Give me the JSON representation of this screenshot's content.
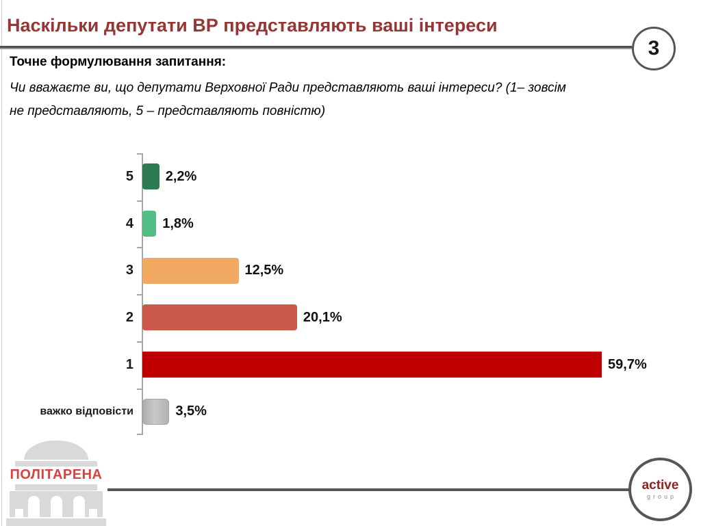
{
  "header": {
    "title": "Наскільки депутати ВР представляють ваші інтереси",
    "page_number": "3"
  },
  "question": {
    "label": "Точне формулювання запитання:",
    "line1": "Чи вважаєте ви, що депутати Верховної Ради представляють ваші інтереси? (1– зовсім",
    "line2": "не представляють, 5 – представляють повністю)"
  },
  "chart_data": {
    "type": "bar",
    "orientation": "horizontal",
    "title": "",
    "xlabel": "",
    "ylabel": "",
    "categories": [
      "5",
      "4",
      "3",
      "2",
      "1",
      "важко відповісти"
    ],
    "values": [
      2.2,
      1.8,
      12.5,
      20.1,
      59.7,
      3.5
    ],
    "value_labels": [
      "2,2%",
      "1,8%",
      "12,5%",
      "20,1%",
      "59,7%",
      "3,5%"
    ],
    "bar_colors": [
      "#2E7B51",
      "#53BD86",
      "#F2A961",
      "#CB5A4A",
      "#C00000",
      "#B5B5B5"
    ],
    "bar_radii": [
      4,
      4,
      4,
      4,
      0,
      6
    ],
    "xlim": [
      0,
      65
    ],
    "grid": false,
    "legend": false,
    "value_decimal_separator": ","
  },
  "footer": {
    "politarena_text": "ПОЛІТАРЕНА",
    "active_line1": "active",
    "active_line2": "group"
  },
  "colors": {
    "title_text": "#963634",
    "divider": "#55565A",
    "bar_1_red": "#C00000",
    "politarena_red": "#D64440",
    "building_gray": "#D9D9D9",
    "active_red": "#8E2420",
    "axis_gray": "#A6A6A6"
  }
}
